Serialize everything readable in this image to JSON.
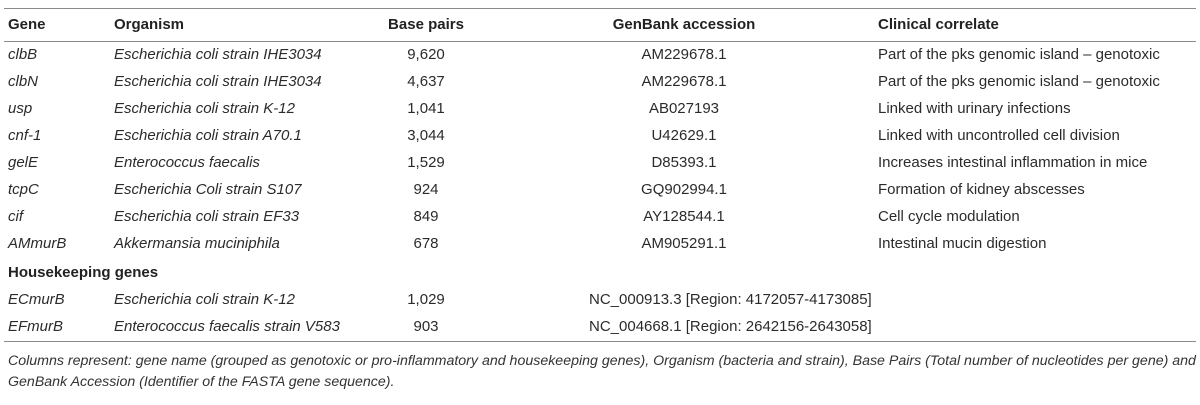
{
  "table": {
    "headers": {
      "gene": "Gene",
      "organism": "Organism",
      "base_pairs": "Base pairs",
      "genbank": "GenBank accession",
      "clinical": "Clinical correlate"
    },
    "rows": [
      {
        "gene": "clbB",
        "organism": "Escherichia coli strain IHE3034",
        "base_pairs": "9,620",
        "genbank": "AM229678.1",
        "clinical": "Part of the pks genomic island – genotoxic"
      },
      {
        "gene": "clbN",
        "organism": "Escherichia coli strain IHE3034",
        "base_pairs": "4,637",
        "genbank": "AM229678.1",
        "clinical": "Part of the pks genomic island – genotoxic"
      },
      {
        "gene": "usp",
        "organism": "Escherichia coli strain K-12",
        "base_pairs": "1,041",
        "genbank": "AB027193",
        "clinical": "Linked with urinary infections"
      },
      {
        "gene": "cnf-1",
        "organism": "Escherichia coli strain A70.1",
        "base_pairs": "3,044",
        "genbank": "U42629.1",
        "clinical": "Linked with uncontrolled cell division"
      },
      {
        "gene": "gelE",
        "organism": "Enterococcus faecalis",
        "base_pairs": "1,529",
        "genbank": "D85393.1",
        "clinical": "Increases intestinal inflammation in mice"
      },
      {
        "gene": "tcpC",
        "organism": "Escherichia Coli strain S107",
        "base_pairs": "924",
        "genbank": "GQ902994.1",
        "clinical": "Formation of kidney abscesses"
      },
      {
        "gene": "cif",
        "organism": "Escherichia coli strain EF33",
        "base_pairs": "849",
        "genbank": "AY128544.1",
        "clinical": "Cell cycle modulation"
      },
      {
        "gene": "AMmurB",
        "organism": "Akkermansia muciniphila",
        "base_pairs": "678",
        "genbank": "AM905291.1",
        "clinical": "Intestinal mucin digestion"
      }
    ],
    "section_label": "Housekeeping genes",
    "housekeeping_rows": [
      {
        "gene": "ECmurB",
        "organism": "Escherichia coli strain K-12",
        "base_pairs": "1,029",
        "genbank": "NC_000913.3 [Region: 4172057-4173085]",
        "clinical": ""
      },
      {
        "gene": "EFmurB",
        "organism": "Enterococcus faecalis strain V583",
        "base_pairs": "903",
        "genbank": "NC_004668.1 [Region: 2642156-2643058]",
        "clinical": ""
      }
    ]
  },
  "footnote": "Columns represent: gene name (grouped as genotoxic or pro-inflammatory and housekeeping genes), Organism (bacteria and strain), Base Pairs (Total number of nucleotides per gene) and GenBank Accession (Identifier of the FASTA gene sequence)."
}
